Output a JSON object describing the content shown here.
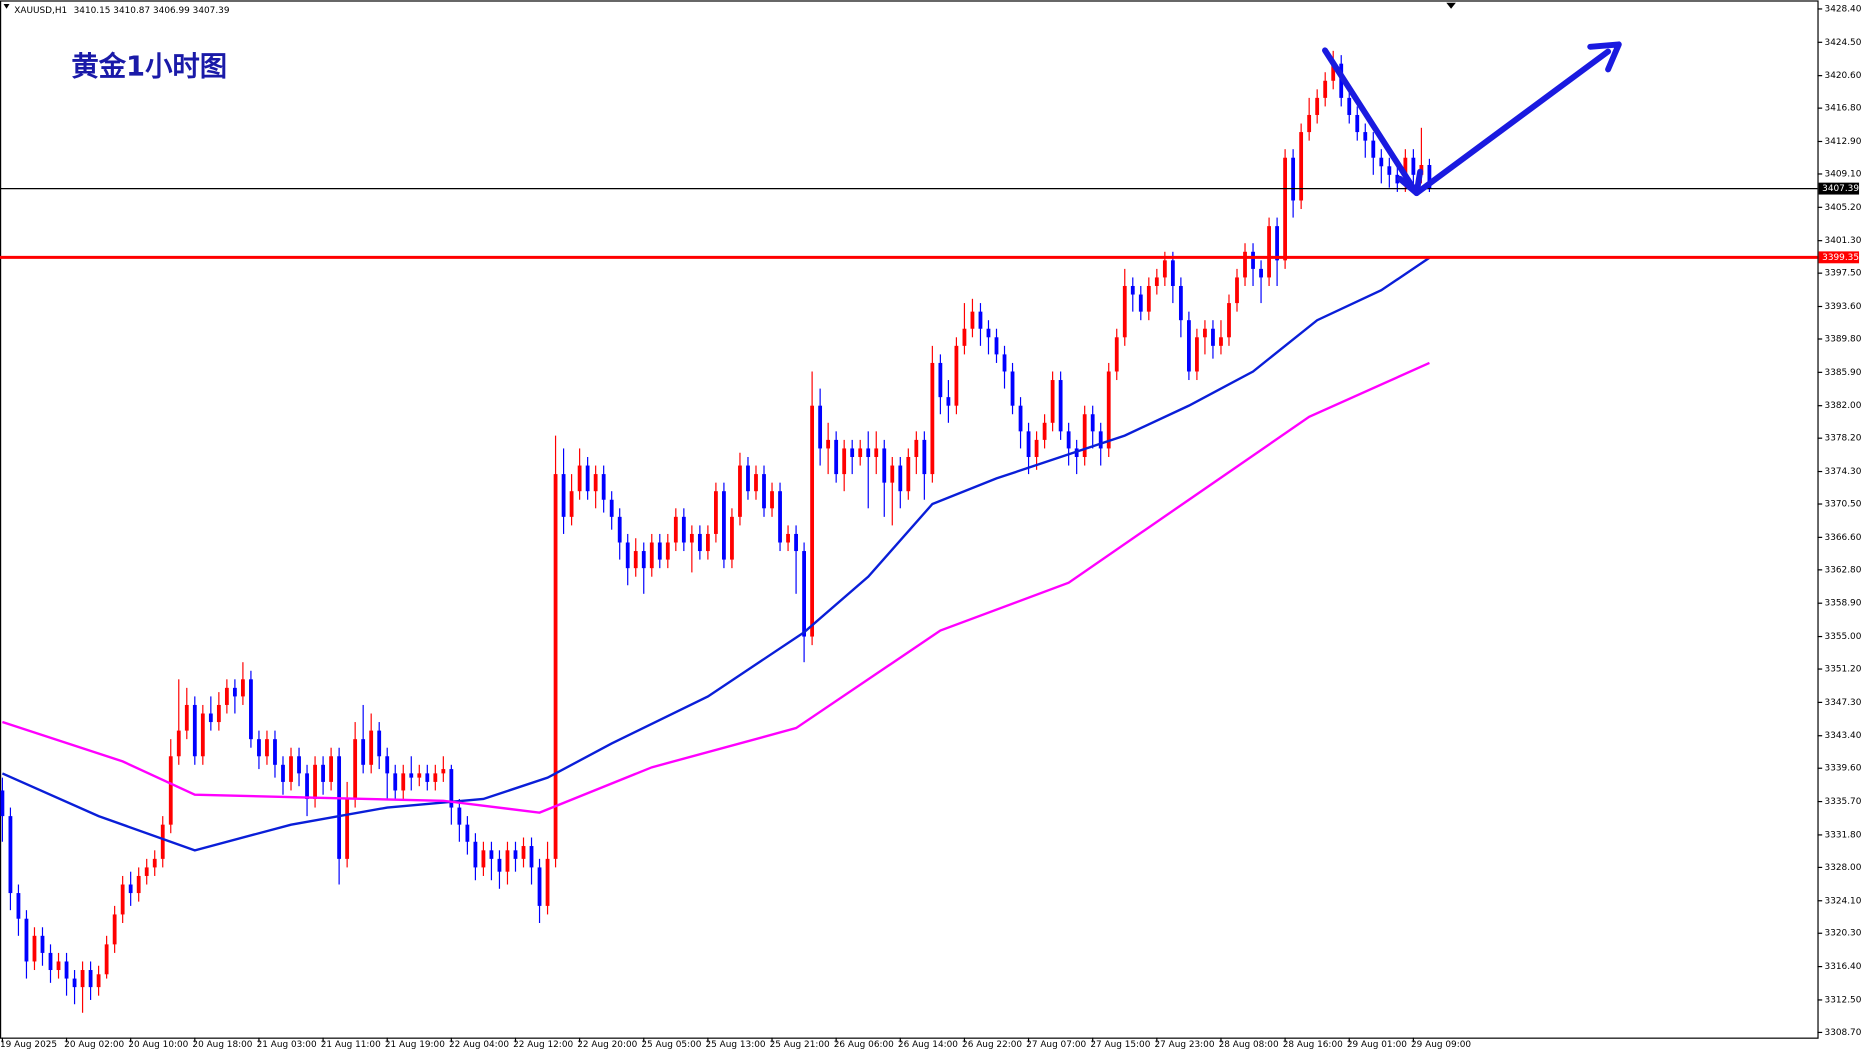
{
  "header": {
    "symbol": "XAUUSD,H1",
    "annotation": "黄金1小时图"
  },
  "chart_data": {
    "type": "candlestick",
    "up_color": "#ff0000",
    "down_color": "#0000ff",
    "open": [
      3337,
      3334,
      3325,
      3322,
      3317,
      3320,
      3318,
      3316,
      3317,
      3315,
      3314,
      3316,
      3314,
      3315.5,
      3319,
      3322.5,
      3326,
      3325,
      3327,
      3328,
      3329,
      3333,
      3341,
      3344,
      3347,
      3341,
      3346,
      3345,
      3347,
      3349,
      3348,
      3350,
      3343,
      3341,
      3343,
      3340,
      3338,
      3341,
      3339,
      3336,
      3340,
      3338,
      3341,
      3329,
      3336,
      3343,
      3340,
      3344,
      3341,
      3339,
      3337,
      3339,
      3338.5,
      3339,
      3338,
      3339,
      3339.5,
      3335,
      3333,
      3331,
      3328,
      3330,
      3329,
      3327.5,
      3330,
      3329,
      3330.5,
      3328,
      3323.5,
      3329,
      3374,
      3369,
      3372,
      3375,
      3372,
      3374,
      3371,
      3369,
      3366,
      3363,
      3365,
      3363,
      3366,
      3364,
      3366,
      3369,
      3366,
      3367,
      3365,
      3367,
      3372,
      3364,
      3369,
      3375,
      3372,
      3374,
      3370,
      3372,
      3366,
      3367,
      3365,
      3355,
      3382,
      3377,
      3378,
      3374,
      3377,
      3376,
      3377,
      3376,
      3377,
      3373,
      3375,
      3372,
      3376,
      3378,
      3374,
      3387,
      3383,
      3382,
      3389,
      3391,
      3393,
      3391,
      3390,
      3388,
      3386,
      3382,
      3379,
      3376,
      3378,
      3380,
      3385,
      3379,
      3377,
      3376,
      3381,
      3379,
      3377,
      3386,
      3390,
      3396,
      3395,
      3393,
      3396,
      3397,
      3399,
      3396,
      3392,
      3386,
      3390,
      3391,
      3389,
      3390,
      3394,
      3397,
      3400,
      3398,
      3397,
      3403,
      3399,
      3411,
      3406,
      3414,
      3416,
      3418,
      3420,
      3422,
      3418,
      3416,
      3414,
      3413,
      3411,
      3410,
      3409,
      3408,
      3411,
      3409,
      3410.15
    ],
    "high": [
      3338.5,
      3335,
      3326,
      3323,
      3321,
      3321,
      3319,
      3318,
      3318,
      3316,
      3317,
      3317,
      3316.5,
      3320,
      3323.5,
      3327,
      3327.5,
      3328,
      3329,
      3330,
      3334,
      3343,
      3350,
      3349,
      3348,
      3347,
      3348,
      3348.5,
      3350,
      3350,
      3352,
      3351,
      3344,
      3344,
      3344,
      3341,
      3342,
      3342,
      3340,
      3341,
      3341,
      3342,
      3342,
      3338,
      3345,
      3347,
      3346,
      3345,
      3342,
      3340,
      3340,
      3341,
      3340,
      3340,
      3340,
      3341,
      3340,
      3336,
      3334,
      3332,
      3331,
      3331,
      3330,
      3331,
      3331,
      3331.5,
      3331.5,
      3329,
      3331,
      3378.5,
      3377,
      3374,
      3377,
      3376,
      3375,
      3375,
      3372,
      3370,
      3367,
      3366.5,
      3366,
      3367,
      3367,
      3367,
      3370,
      3370,
      3368,
      3368,
      3368,
      3373,
      3373,
      3370,
      3376.5,
      3376,
      3375,
      3375,
      3373,
      3373,
      3368,
      3368,
      3366,
      3386,
      3384,
      3380,
      3379,
      3378,
      3378,
      3378,
      3379,
      3379,
      3378,
      3376,
      3376,
      3377,
      3379,
      3379,
      3389,
      3388,
      3385,
      3390,
      3394,
      3394.5,
      3394,
      3392,
      3391,
      3389,
      3387,
      3383,
      3380,
      3379,
      3381,
      3386,
      3386,
      3380,
      3378,
      3382,
      3382,
      3380,
      3387,
      3391,
      3398,
      3397,
      3396,
      3397,
      3398,
      3400,
      3400,
      3397,
      3393,
      3391,
      3392,
      3392,
      3392,
      3395,
      3398,
      3401,
      3401,
      3399,
      3404,
      3404,
      3412,
      3412,
      3415,
      3418,
      3419,
      3421,
      3423.5,
      3423,
      3419,
      3417,
      3415,
      3414,
      3412,
      3411,
      3410,
      3412,
      3412,
      3414.5,
      3410.87
    ],
    "low": [
      3331,
      3323,
      3320,
      3315,
      3316,
      3316.5,
      3314.5,
      3315,
      3313,
      3312,
      3311,
      3312.5,
      3313,
      3315,
      3318,
      3321.5,
      3323.5,
      3324,
      3326,
      3327,
      3328,
      3332,
      3340,
      3343,
      3340,
      3340,
      3344,
      3344,
      3346,
      3346,
      3347,
      3342,
      3339.5,
      3340,
      3338.5,
      3336.5,
      3337,
      3337.5,
      3334,
      3335,
      3336.5,
      3337,
      3326,
      3328,
      3335,
      3339,
      3339,
      3339.5,
      3336,
      3336,
      3336,
      3337,
      3337.5,
      3337,
      3337,
      3338,
      3333,
      3331,
      3329.5,
      3326.5,
      3327,
      3326.5,
      3325.5,
      3326,
      3327.5,
      3328,
      3326,
      3321.5,
      3322.5,
      3328,
      3367,
      3368,
      3371,
      3371,
      3370,
      3369.5,
      3367.5,
      3364,
      3361,
      3362,
      3360,
      3362,
      3363,
      3363,
      3365,
      3365,
      3362.5,
      3364,
      3364,
      3366,
      3363,
      3363,
      3368,
      3371,
      3371,
      3369,
      3369,
      3365,
      3365,
      3360,
      3352,
      3354,
      3375,
      3374,
      3373,
      3372,
      3374,
      3375,
      3370,
      3374,
      3369,
      3368,
      3370,
      3371,
      3374,
      3371,
      3373,
      3381,
      3380,
      3381,
      3388,
      3390,
      3389,
      3388,
      3387,
      3384,
      3381,
      3377,
      3374,
      3374.5,
      3377,
      3379,
      3378,
      3375,
      3374,
      3375,
      3377,
      3375,
      3376,
      3385,
      3389,
      3393,
      3392,
      3392,
      3395,
      3396,
      3394,
      3390,
      3385,
      3385,
      3388,
      3387.5,
      3388,
      3389,
      3393,
      3396,
      3396,
      3394,
      3396,
      3396,
      3398,
      3404,
      3405,
      3413,
      3415,
      3417,
      3419,
      3417,
      3415,
      3413,
      3411,
      3409,
      3408,
      3407.5,
      3407,
      3407,
      3408,
      3408,
      3406.99
    ],
    "close": [
      3334,
      3325,
      3322,
      3317,
      3320,
      3318,
      3316,
      3317,
      3315,
      3314,
      3316,
      3314,
      3315.5,
      3319,
      3322.5,
      3326,
      3325,
      3327,
      3328,
      3329,
      3333,
      3341,
      3344,
      3347,
      3341,
      3346,
      3345,
      3347,
      3349,
      3348,
      3350,
      3343,
      3341,
      3343,
      3340,
      3338,
      3341,
      3339,
      3336,
      3340,
      3338,
      3341,
      3329,
      3336,
      3343,
      3340,
      3344,
      3341,
      3339,
      3337,
      3339,
      3338.5,
      3339,
      3338,
      3339,
      3339.5,
      3335,
      3333,
      3331,
      3328,
      3330,
      3329,
      3327.5,
      3330,
      3329,
      3330.5,
      3328,
      3323.5,
      3329,
      3374,
      3369,
      3372,
      3375,
      3372,
      3374,
      3371,
      3369,
      3366,
      3363,
      3365,
      3363,
      3366,
      3364,
      3366,
      3369,
      3366,
      3367,
      3365,
      3367,
      3372,
      3364,
      3369,
      3375,
      3372,
      3374,
      3370,
      3372,
      3366,
      3367,
      3365,
      3355,
      3382,
      3377,
      3378,
      3374,
      3377,
      3376,
      3377,
      3376,
      3377,
      3373,
      3375,
      3372,
      3376,
      3378,
      3374,
      3387,
      3383,
      3382,
      3389,
      3391,
      3393,
      3391,
      3390,
      3388,
      3386,
      3382,
      3379,
      3376,
      3378,
      3380,
      3385,
      3379,
      3377,
      3376,
      3381,
      3379,
      3377,
      3386,
      3390,
      3396,
      3395,
      3393,
      3396,
      3397,
      3399,
      3396,
      3392,
      3386,
      3390,
      3391,
      3389,
      3390,
      3394,
      3397,
      3400,
      3398,
      3397,
      3403,
      3399,
      3411,
      3406,
      3414,
      3416,
      3418,
      3420,
      3422,
      3418,
      3416,
      3414,
      3413,
      3411,
      3410,
      3409,
      3408,
      3411,
      3409,
      3410.15,
      3407.39
    ],
    "lines": [
      {
        "color": "#0a1ed8",
        "x": [
          0,
          12,
          24,
          36,
          48,
          60,
          68,
          76,
          88,
          100,
          108,
          116,
          124,
          132,
          140,
          148,
          156,
          164,
          172,
          178
        ],
        "values": [
          3339,
          3334,
          3330,
          3333,
          3335,
          3336,
          3338.5,
          3342.5,
          3348,
          3355.5,
          3362,
          3370.5,
          3373.5,
          3376,
          3378.5,
          3382,
          3386,
          3392,
          3395.5,
          3399.3
        ]
      },
      {
        "color": "#ff00ff",
        "x": [
          0,
          15,
          24,
          37,
          55,
          67,
          81,
          99,
          117,
          133,
          148,
          163,
          178
        ],
        "values": [
          3345,
          3340.4,
          3336.5,
          3336.2,
          3335.8,
          3334.4,
          3339.7,
          3344.3,
          3355.7,
          3361.3,
          3371,
          3380.7,
          3387
        ]
      }
    ],
    "hlines": [
      {
        "value": 3407.39,
        "color": "#000000"
      },
      {
        "value": 3399.35,
        "color": "#ff0000"
      }
    ],
    "xlim": [
      -0.3,
      226.4
    ],
    "ylim": [
      3308.1,
      3429.4
    ],
    "xticks": [
      {
        "value": 0,
        "label": "19 Aug 2025"
      },
      {
        "value": 8,
        "label": "20 Aug 02:00"
      },
      {
        "value": 16,
        "label": "20 Aug 10:00"
      },
      {
        "value": 24,
        "label": "20 Aug 18:00"
      },
      {
        "value": 32,
        "label": "21 Aug 03:00"
      },
      {
        "value": 40,
        "label": "21 Aug 11:00"
      },
      {
        "value": 48,
        "label": "21 Aug 19:00"
      },
      {
        "value": 56,
        "label": "22 Aug 04:00"
      },
      {
        "value": 64,
        "label": "22 Aug 12:00"
      },
      {
        "value": 72,
        "label": "22 Aug 20:00"
      },
      {
        "value": 80,
        "label": "25 Aug 05:00"
      },
      {
        "value": 88,
        "label": "25 Aug 13:00"
      },
      {
        "value": 96,
        "label": "25 Aug 21:00"
      },
      {
        "value": 104,
        "label": "26 Aug 06:00"
      },
      {
        "value": 112,
        "label": "26 Aug 14:00"
      },
      {
        "value": 120,
        "label": "26 Aug 22:00"
      },
      {
        "value": 128,
        "label": "27 Aug 07:00"
      },
      {
        "value": 136,
        "label": "27 Aug 15:00"
      },
      {
        "value": 144,
        "label": "27 Aug 23:00"
      },
      {
        "value": 152,
        "label": "28 Aug 08:00"
      },
      {
        "value": 160,
        "label": "28 Aug 16:00"
      },
      {
        "value": 168,
        "label": "29 Aug 01:00"
      },
      {
        "value": 176,
        "label": "29 Aug 09:00"
      }
    ],
    "yticks": [
      {
        "value": 3428.4,
        "label": "3428.40"
      },
      {
        "value": 3424.5,
        "label": "3424.50"
      },
      {
        "value": 3420.6,
        "label": "3420.60"
      },
      {
        "value": 3416.8,
        "label": "3416.80"
      },
      {
        "value": 3412.9,
        "label": "3412.90"
      },
      {
        "value": 3409.1,
        "label": "3409.10"
      },
      {
        "value": 3405.2,
        "label": "3405.20"
      },
      {
        "value": 3401.3,
        "label": "3401.30"
      },
      {
        "value": 3397.5,
        "label": "3397.50"
      },
      {
        "value": 3393.6,
        "label": "3393.60"
      },
      {
        "value": 3389.8,
        "label": "3389.80"
      },
      {
        "value": 3385.9,
        "label": "3385.90"
      },
      {
        "value": 3382,
        "label": "3382.00"
      },
      {
        "value": 3378.2,
        "label": "3378.20"
      },
      {
        "value": 3374.3,
        "label": "3374.30"
      },
      {
        "value": 3370.5,
        "label": "3370.50"
      },
      {
        "value": 3366.6,
        "label": "3366.60"
      },
      {
        "value": 3362.8,
        "label": "3362.80"
      },
      {
        "value": 3358.9,
        "label": "3358.90"
      },
      {
        "value": 3355,
        "label": "3355.00"
      },
      {
        "value": 3351.2,
        "label": "3351.20"
      },
      {
        "value": 3347.3,
        "label": "3347.30"
      },
      {
        "value": 3343.4,
        "label": "3343.40"
      },
      {
        "value": 3339.6,
        "label": "3339.60"
      },
      {
        "value": 3335.7,
        "label": "3335.70"
      },
      {
        "value": 3331.8,
        "label": "3331.80"
      },
      {
        "value": 3328,
        "label": "3328.00"
      },
      {
        "value": 3324.1,
        "label": "3324.10"
      },
      {
        "value": 3320.3,
        "label": "3320.30"
      },
      {
        "value": 3316.4,
        "label": "3316.40"
      },
      {
        "value": 3312.5,
        "label": "3312.50"
      },
      {
        "value": 3308.7,
        "label": "3308.70"
      }
    ]
  }
}
